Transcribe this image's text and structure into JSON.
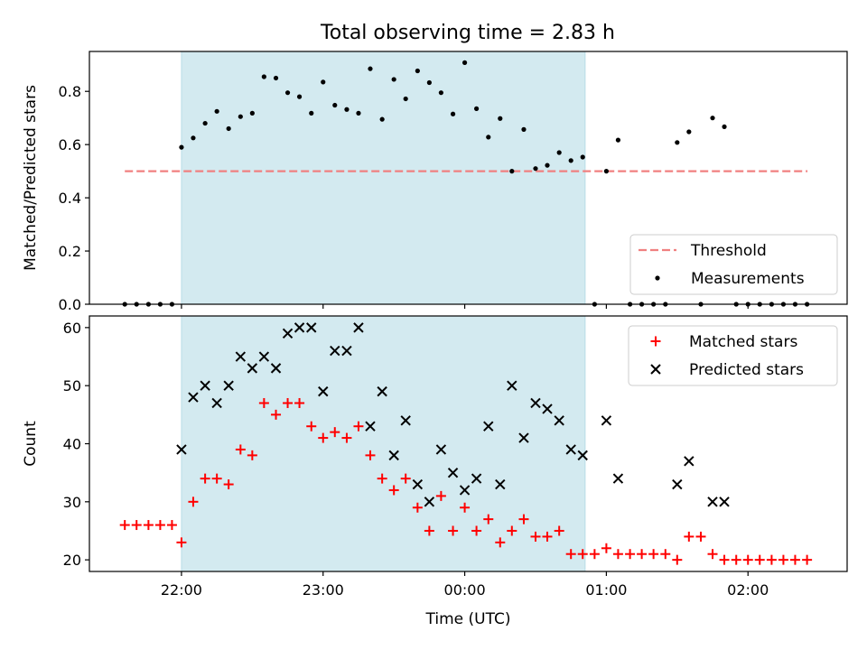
{
  "figure_title": "Total observing time = 2.83 h",
  "chart_data": [
    {
      "type": "scatter",
      "title": "Total observing time = 2.83 h",
      "xlabel": "",
      "ylabel": "Matched/Predicted stars",
      "x_unit": "hours relative to 00:00 UTC",
      "xlim": [
        -2.65,
        2.7
      ],
      "ylim": [
        0,
        0.95
      ],
      "yticks": [
        0.0,
        0.2,
        0.4,
        0.6,
        0.8
      ],
      "ytick_labels": [
        "0.0",
        "0.2",
        "0.4",
        "0.6",
        "0.8"
      ],
      "xticks": [
        -2,
        -1,
        0,
        1,
        2
      ],
      "shaded_span": [
        -2.0,
        0.85
      ],
      "shaded_color": "#d3eaf0",
      "legend_position": "lower right",
      "legend": [
        "Threshold",
        "Measurements"
      ],
      "series": [
        {
          "name": "Threshold",
          "kind": "dashed-line",
          "color": "#f08080",
          "x": [
            -2.4,
            2.42
          ],
          "y": [
            0.5,
            0.5
          ]
        },
        {
          "name": "Measurements",
          "kind": "dot",
          "color": "#000000",
          "x": [
            -2.4,
            -2.317,
            -2.233,
            -2.15,
            -2.067,
            -2.0,
            -1.917,
            -1.833,
            -1.75,
            -1.667,
            -1.583,
            -1.5,
            -1.417,
            -1.333,
            -1.25,
            -1.167,
            -1.083,
            -1.0,
            -0.917,
            -0.833,
            -0.75,
            -0.667,
            -0.583,
            -0.5,
            -0.417,
            -0.333,
            -0.25,
            -0.167,
            -0.083,
            0.0,
            0.083,
            0.167,
            0.25,
            0.333,
            0.417,
            0.5,
            0.583,
            0.667,
            0.75,
            0.833,
            0.917,
            1.0,
            1.083,
            1.167,
            1.25,
            1.333,
            1.417,
            1.5,
            1.583,
            1.667,
            1.75,
            1.833,
            1.917,
            2.0,
            2.083,
            2.167,
            2.25,
            2.333,
            2.417
          ],
          "y": [
            0,
            0,
            0,
            0,
            0,
            0.59,
            0.625,
            0.68,
            0.725,
            0.66,
            0.705,
            0.718,
            0.855,
            0.85,
            0.795,
            0.78,
            0.718,
            0.835,
            0.748,
            0.732,
            0.718,
            0.885,
            0.695,
            0.845,
            0.772,
            0.877,
            0.833,
            0.795,
            0.715,
            0.908,
            0.735,
            0.628,
            0.698,
            0.5,
            0.657,
            0.51,
            0.522,
            0.57,
            0.54,
            0.553,
            0,
            0.5,
            0.617,
            0,
            0,
            0,
            0,
            0.608,
            0.648,
            0,
            0.7,
            0.667,
            0,
            0,
            0,
            0,
            0,
            0,
            0
          ]
        }
      ]
    },
    {
      "type": "scatter",
      "title": "",
      "xlabel": "Time (UTC)",
      "ylabel": "Count",
      "x_unit": "hours relative to 00:00 UTC",
      "xlim": [
        -2.65,
        2.7
      ],
      "ylim": [
        18,
        62
      ],
      "yticks": [
        20,
        30,
        40,
        50,
        60
      ],
      "ytick_labels": [
        "20",
        "30",
        "40",
        "50",
        "60"
      ],
      "xticks": [
        -2,
        -1,
        0,
        1,
        2
      ],
      "xtick_labels": [
        "22:00",
        "23:00",
        "00:00",
        "01:00",
        "02:00"
      ],
      "shaded_span": [
        -2.0,
        0.85
      ],
      "shaded_color": "#d3eaf0",
      "legend_position": "upper right",
      "legend": [
        "Matched stars",
        "Predicted stars"
      ],
      "series": [
        {
          "name": "Matched stars",
          "kind": "plus",
          "color": "#ff0000",
          "x": [
            -2.4,
            -2.317,
            -2.233,
            -2.15,
            -2.067,
            -2.0,
            -1.917,
            -1.833,
            -1.75,
            -1.667,
            -1.583,
            -1.5,
            -1.417,
            -1.333,
            -1.25,
            -1.167,
            -1.083,
            -1.0,
            -0.917,
            -0.833,
            -0.75,
            -0.667,
            -0.583,
            -0.5,
            -0.417,
            -0.333,
            -0.25,
            -0.167,
            -0.083,
            0.0,
            0.083,
            0.167,
            0.25,
            0.333,
            0.417,
            0.5,
            0.583,
            0.667,
            0.75,
            0.833,
            0.917,
            1.0,
            1.083,
            1.167,
            1.25,
            1.333,
            1.417,
            1.5,
            1.583,
            1.667,
            1.75,
            1.833,
            1.917,
            2.0,
            2.083,
            2.167,
            2.25,
            2.333,
            2.417
          ],
          "y": [
            26,
            26,
            26,
            26,
            26,
            23,
            30,
            34,
            34,
            33,
            39,
            38,
            47,
            45,
            47,
            47,
            43,
            41,
            42,
            41,
            43,
            38,
            34,
            32,
            34,
            29,
            25,
            31,
            25,
            29,
            25,
            27,
            23,
            25,
            27,
            24,
            24,
            25,
            21,
            21,
            21,
            22,
            21,
            21,
            21,
            21,
            21,
            20,
            24,
            24,
            21,
            20,
            20,
            20,
            20,
            20,
            20,
            20,
            20
          ]
        },
        {
          "name": "Predicted stars",
          "kind": "cross",
          "color": "#000000",
          "x": [
            -2.0,
            -1.917,
            -1.833,
            -1.75,
            -1.667,
            -1.583,
            -1.5,
            -1.417,
            -1.333,
            -1.25,
            -1.167,
            -1.083,
            -1.0,
            -0.917,
            -0.833,
            -0.75,
            -0.667,
            -0.583,
            -0.5,
            -0.417,
            -0.333,
            -0.25,
            -0.167,
            -0.083,
            0.0,
            0.083,
            0.167,
            0.25,
            0.333,
            0.417,
            0.5,
            0.583,
            0.667,
            0.75,
            0.833,
            1.0,
            1.083,
            1.5,
            1.583,
            1.75,
            1.833
          ],
          "y": [
            39,
            48,
            50,
            47,
            50,
            55,
            53,
            55,
            53,
            59,
            60,
            60,
            49,
            56,
            56,
            60,
            43,
            49,
            38,
            44,
            33,
            30,
            39,
            35,
            32,
            34,
            43,
            33,
            50,
            41,
            47,
            46,
            44,
            39,
            38,
            44,
            34,
            33,
            37,
            30,
            30
          ]
        }
      ]
    }
  ]
}
